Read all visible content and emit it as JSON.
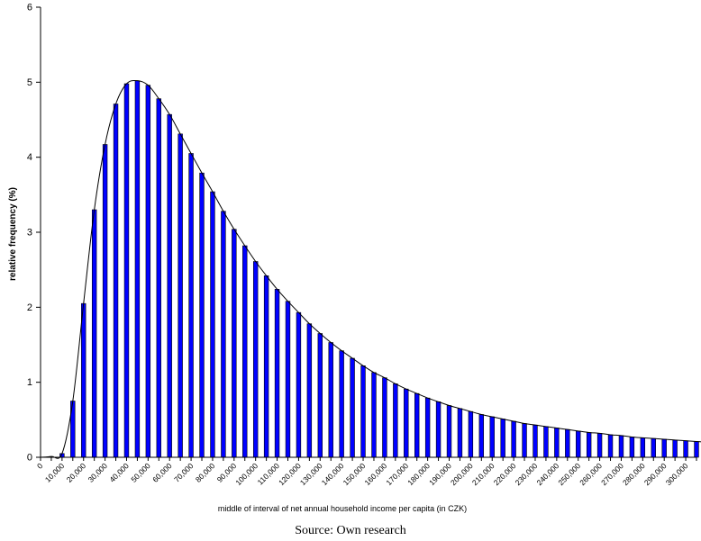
{
  "chart_data": {
    "type": "bar",
    "ylabel": "relative frequency (%)",
    "xlabel": "middle of interval of net annual household income per capita (in CZK)",
    "ylim": [
      0,
      6
    ],
    "xlim": [
      0,
      305000
    ],
    "yticks": [
      "0",
      "1",
      "2",
      "3",
      "4",
      "5",
      "6"
    ],
    "xtick_labels": [
      "0",
      "10,000",
      "20,000",
      "30,000",
      "40,000",
      "50,000",
      "60,000",
      "70,000",
      "80,000",
      "90,000",
      "100,000",
      "110,000",
      "120,000",
      "130,000",
      "140,000",
      "150,000",
      "160,000",
      "170,000",
      "180,000",
      "190,000",
      "200,000",
      "210,000",
      "220,000",
      "230,000",
      "240,000",
      "250,000",
      "260,000",
      "270,000",
      "280,000",
      "290,000",
      "300,000"
    ],
    "x_start": 0,
    "x_step": 5000,
    "bar_color": "#0000ff",
    "curve_color": "#000000",
    "grid": false,
    "values": [
      0,
      0.01,
      0.05,
      0.75,
      2.05,
      3.3,
      4.17,
      4.71,
      4.98,
      5.02,
      4.96,
      4.78,
      4.57,
      4.31,
      4.05,
      3.79,
      3.54,
      3.28,
      3.04,
      2.82,
      2.61,
      2.42,
      2.24,
      2.08,
      1.93,
      1.78,
      1.65,
      1.53,
      1.42,
      1.32,
      1.22,
      1.13,
      1.06,
      0.98,
      0.91,
      0.85,
      0.79,
      0.74,
      0.69,
      0.65,
      0.61,
      0.57,
      0.54,
      0.51,
      0.48,
      0.45,
      0.43,
      0.41,
      0.39,
      0.37,
      0.35,
      0.33,
      0.32,
      0.3,
      0.29,
      0.27,
      0.26,
      0.25,
      0.24,
      0.23,
      0.22,
      0.21,
      0.2
    ]
  },
  "source": "Source: Own research"
}
